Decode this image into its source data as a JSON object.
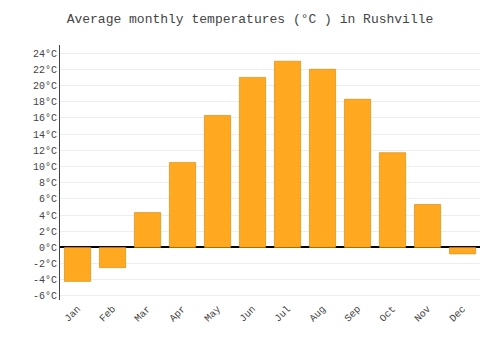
{
  "chart_data": {
    "type": "bar",
    "title": "Average monthly temperatures (°C ) in Rushville",
    "categories": [
      "Jan",
      "Feb",
      "Mar",
      "Apr",
      "May",
      "Jun",
      "Jul",
      "Aug",
      "Sep",
      "Oct",
      "Nov",
      "Dec"
    ],
    "values": [
      -4.2,
      -2.5,
      4.3,
      10.5,
      16.3,
      21.0,
      23.0,
      22.0,
      18.3,
      11.7,
      5.3,
      -0.8
    ],
    "color": "#FFA820",
    "ylim": [
      -6.5,
      25
    ],
    "yticks": [
      {
        "value": -6,
        "label": "-6°C"
      },
      {
        "value": -4,
        "label": "-4°C"
      },
      {
        "value": -2,
        "label": "-2°C"
      },
      {
        "value": 0,
        "label": "0°C"
      },
      {
        "value": 2,
        "label": "2°C"
      },
      {
        "value": 4,
        "label": "4°C"
      },
      {
        "value": 6,
        "label": "6°C"
      },
      {
        "value": 8,
        "label": "8°C"
      },
      {
        "value": 10,
        "label": "10°C"
      },
      {
        "value": 12,
        "label": "12°C"
      },
      {
        "value": 14,
        "label": "14°C"
      },
      {
        "value": 16,
        "label": "16°C"
      },
      {
        "value": 18,
        "label": "18°C"
      },
      {
        "value": 20,
        "label": "20°C"
      },
      {
        "value": 22,
        "label": "22°C"
      },
      {
        "value": 24,
        "label": "24°C"
      }
    ],
    "grid": true
  }
}
